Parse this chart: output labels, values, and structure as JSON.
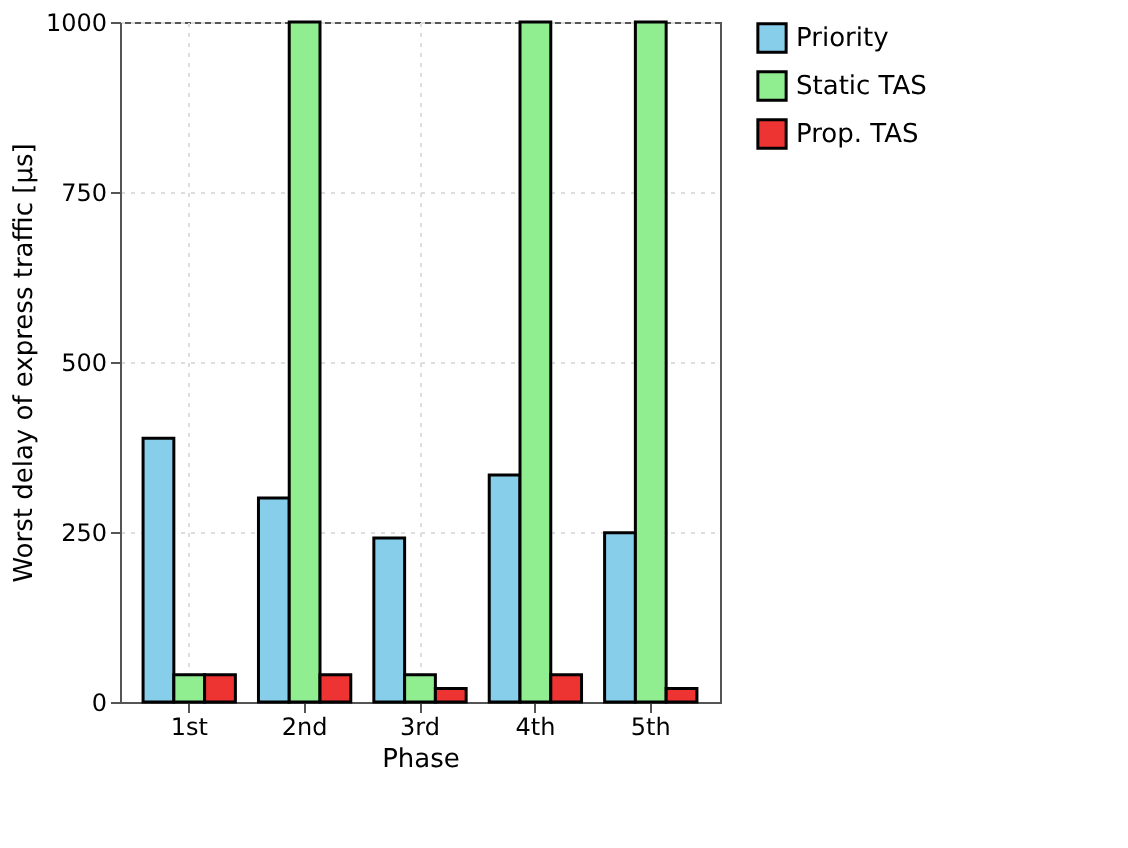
{
  "chart_data": {
    "type": "bar",
    "xlabel": "Phase",
    "ylabel": "Worst delay of express traffic [µs]",
    "categories": [
      "1st",
      "2nd",
      "3rd",
      "4th",
      "5th"
    ],
    "series": [
      {
        "name": "Priority",
        "color": "#87ceeb",
        "values": [
          388,
          300,
          241,
          334,
          249
        ]
      },
      {
        "name": "Static TAS",
        "color": "#90ee90",
        "values": [
          40,
          1000,
          40,
          1000,
          1000
        ]
      },
      {
        "name": "Prop. TAS",
        "color": "#ee3333",
        "values": [
          40,
          40,
          20,
          40,
          20
        ]
      }
    ],
    "ylim": [
      0,
      1000
    ],
    "yticks": [
      0,
      250,
      500,
      750,
      1000
    ],
    "grid": true,
    "legend": "top right"
  }
}
